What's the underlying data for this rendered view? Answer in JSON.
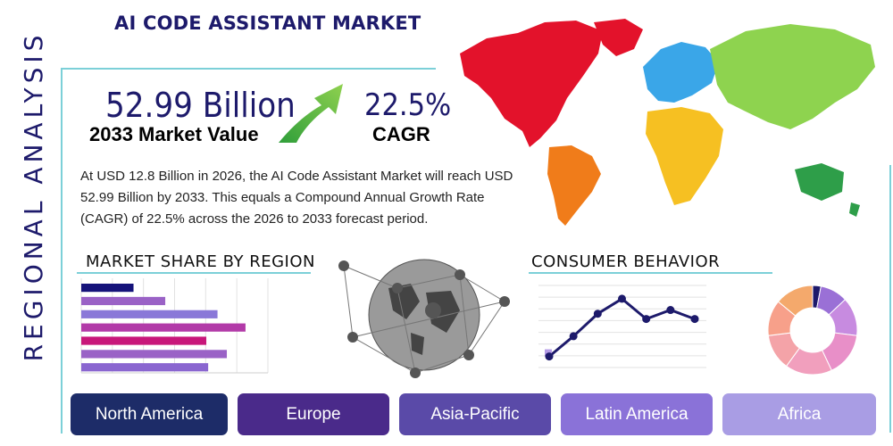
{
  "side_title": "REGIONAL ANALYSIS",
  "title": "AI CODE ASSISTANT MARKET",
  "headline": {
    "value": "52.99 Billion",
    "value_label": "2033 Market Value",
    "cagr": "22.5%",
    "cagr_label": "CAGR"
  },
  "description": "At USD 12.8 Billion in 2026, the AI Code Assistant Market will reach USD 52.99 Billion by 2033. This equals a Compound Annual Growth Rate (CAGR) of 22.5% across the 2026 to 2033 forecast period.",
  "colors": {
    "navy": "#1d1a6b",
    "teal_accent": "#7cd0d8",
    "arrow_green": "#4caf3a"
  },
  "chart_data": [
    {
      "type": "bar",
      "orientation": "horizontal",
      "title": "MARKET SHARE BY REGION",
      "values": [
        0.28,
        0.45,
        0.73,
        0.88,
        0.67,
        0.78,
        0.68
      ],
      "colors": [
        "#15137a",
        "#9a62c6",
        "#8a78d8",
        "#b23aa8",
        "#c8177a",
        "#9a62c6",
        "#8a66d0"
      ],
      "xlim": [
        0,
        1
      ],
      "grid": true
    },
    {
      "type": "line",
      "title": "CONSUMER BEHAVIOR",
      "values": [
        0.1,
        0.37,
        0.67,
        0.87,
        0.6,
        0.72,
        0.6
      ],
      "ylim": [
        0,
        1
      ],
      "color": "#1d1a6b",
      "grid": true
    },
    {
      "type": "donut",
      "values": [
        3,
        10,
        14,
        16,
        17,
        13,
        13,
        14
      ],
      "colors": [
        "#1d1a6b",
        "#9a70d6",
        "#c78be0",
        "#e88fc8",
        "#f19fbd",
        "#f4a3a8",
        "#f7a08a",
        "#f4a96c"
      ]
    }
  ],
  "regions": [
    {
      "label": "North America",
      "color": "#1d2c68"
    },
    {
      "label": "Europe",
      "color": "#4a2a8a"
    },
    {
      "label": "Asia-Pacific",
      "color": "#5a4aa8"
    },
    {
      "label": "Latin America",
      "color": "#8a72d8"
    },
    {
      "label": "Africa",
      "color": "#a99de4"
    }
  ]
}
